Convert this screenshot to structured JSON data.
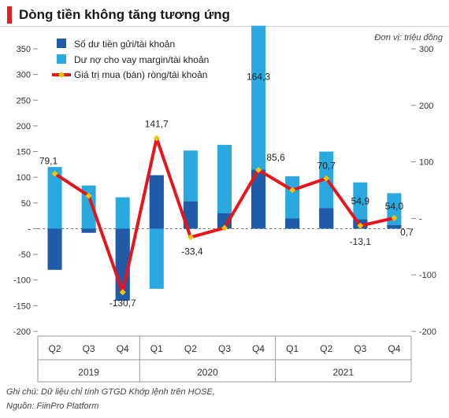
{
  "header": {
    "title": "Dòng tiền không tăng tương ứng",
    "unit": "Đơn vị: triệu đồng"
  },
  "footer": {
    "note": "Ghi chú: Dữ liệu chỉ tính GTGD Khớp lệnh trên HOSE,",
    "source": "Nguồn: FiinPro Platform"
  },
  "colors": {
    "deposit": "#1f5ba8",
    "margin": "#2aa8e0",
    "net": "#e8141c",
    "marker": "#f5c400",
    "accent": "#e0201b"
  },
  "chart_data": {
    "type": "bar",
    "categories": [
      "Q2",
      "Q3",
      "Q4",
      "Q1",
      "Q2",
      "Q3",
      "Q4",
      "Q1",
      "Q2",
      "Q3",
      "Q4"
    ],
    "years": [
      {
        "label": "2019",
        "span": [
          0,
          2
        ]
      },
      {
        "label": "2020",
        "span": [
          3,
          6
        ]
      },
      {
        "label": "2021",
        "span": [
          7,
          10
        ]
      }
    ],
    "series": [
      {
        "name": "Số dư tiền gửi/tài khoản",
        "kind": "bar",
        "axis": "left",
        "values": [
          -80,
          -8,
          -140,
          104,
          53,
          30,
          115,
          20,
          40,
          18,
          7
        ]
      },
      {
        "name": "Dư nợ cho vay margin/tài khoản",
        "kind": "bar",
        "axis": "left",
        "values": [
          120,
          84,
          61,
          -117,
          99,
          133,
          280,
          82,
          110,
          72,
          62
        ]
      },
      {
        "name": "Giá trị mua (bán) ròng/tài khoản",
        "kind": "line",
        "axis": "right",
        "values": [
          79.1,
          40,
          -130.7,
          141.7,
          -33.4,
          -17,
          85.6,
          50,
          70.7,
          -13.1,
          0.7
        ]
      }
    ],
    "data_labels": [
      {
        "index": 0,
        "text": "79,1"
      },
      {
        "index": 2,
        "text": "-130,7"
      },
      {
        "index": 3,
        "text": "141,7"
      },
      {
        "index": 4,
        "text": "-33,4"
      },
      {
        "index": 6,
        "text": "164,3"
      },
      {
        "index": 6,
        "text": "85,6"
      },
      {
        "index": 8,
        "text": "70,7"
      },
      {
        "index": 9,
        "text": "54,9"
      },
      {
        "index": 9,
        "text": "-13,1"
      },
      {
        "index": 10,
        "text": "54,0"
      },
      {
        "index": 10,
        "text": "0,7"
      }
    ],
    "y_left": {
      "ylim": [
        -200,
        350
      ],
      "ticks": [
        350,
        300,
        250,
        200,
        150,
        100,
        50,
        0,
        -50,
        -100,
        -150,
        -200
      ],
      "tick_labels": [
        "350",
        "300",
        "250",
        "200",
        "150",
        "100",
        "50",
        "-",
        "-50",
        "-100",
        "-150",
        "-200"
      ]
    },
    "y_right": {
      "ylim": [
        -200,
        300
      ],
      "ticks": [
        300,
        200,
        100,
        0,
        -100,
        -200
      ],
      "tick_labels": [
        "300",
        "200",
        "100",
        "-",
        "-100",
        "-200"
      ]
    },
    "legend_position": "top-left"
  }
}
